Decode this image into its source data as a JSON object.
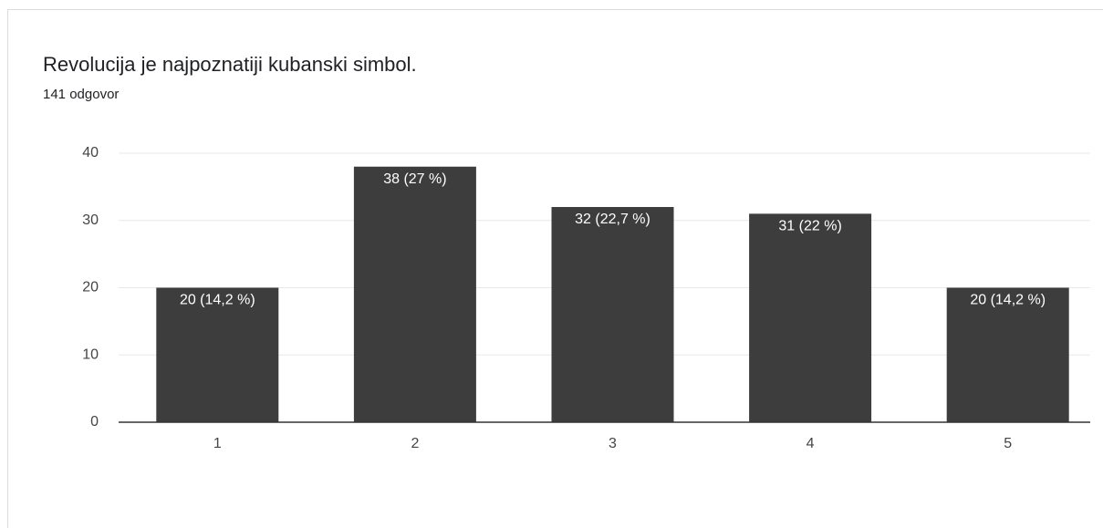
{
  "chart_data": {
    "type": "bar",
    "title": "Revolucija je najpoznatiji kubanski simbol.",
    "subtitle": "141 odgovor",
    "categories": [
      "1",
      "2",
      "3",
      "4",
      "5"
    ],
    "values": [
      20,
      38,
      32,
      31,
      20
    ],
    "value_labels": [
      "20 (14,2 %)",
      "38 (27 %)",
      "32 (22,7 %)",
      "31 (22 %)",
      "20 (14,2 %)"
    ],
    "color": "#3d3d3d",
    "ylim": [
      0,
      40
    ],
    "yticks": [
      0,
      10,
      20,
      30,
      40
    ],
    "grid": true
  }
}
